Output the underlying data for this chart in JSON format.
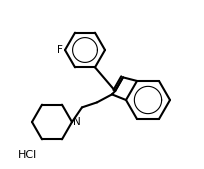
{
  "title": "",
  "background_color": "#ffffff",
  "line_color": "#000000",
  "line_width": 1.5,
  "font_size": 8,
  "label_F": "F",
  "label_N": "N",
  "label_HCl": "HCl"
}
